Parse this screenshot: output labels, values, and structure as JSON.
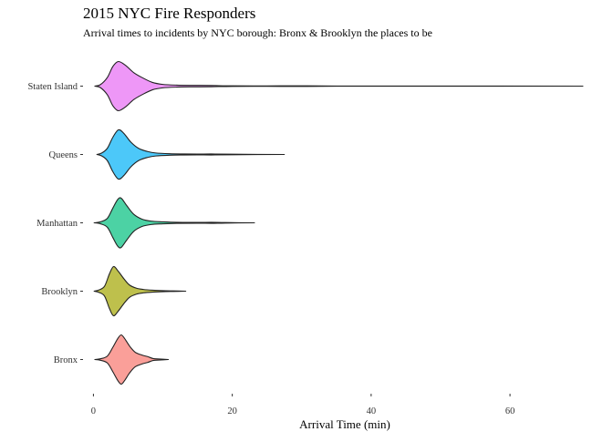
{
  "chart_data": {
    "type": "violin",
    "title": "2015 NYC Fire Responders",
    "subtitle": "Arrival times to incidents by NYC borough: Bronx & Brooklyn the places to be",
    "xlabel": "Arrival Time (min)",
    "ylabel": "",
    "xlim": [
      -1.5,
      70.5
    ],
    "x_ticks": [
      0,
      20,
      40,
      60
    ],
    "orientation": "horizontal",
    "grid": false,
    "legend": "none",
    "categories": [
      "Bronx",
      "Brooklyn",
      "Manhattan",
      "Queens",
      "Staten Island"
    ],
    "series": [
      {
        "category": "Bronx",
        "color": "#F8766D",
        "min": 0.2,
        "max": 10.8,
        "density": [
          [
            0.2,
            0.0
          ],
          [
            1.0,
            0.03
          ],
          [
            2.0,
            0.14
          ],
          [
            2.8,
            0.5
          ],
          [
            3.5,
            0.85
          ],
          [
            4.0,
            1.0
          ],
          [
            4.5,
            0.85
          ],
          [
            5.2,
            0.55
          ],
          [
            6.0,
            0.3
          ],
          [
            7.0,
            0.18
          ],
          [
            7.8,
            0.12
          ],
          [
            8.6,
            0.04
          ],
          [
            9.5,
            0.02
          ],
          [
            10.8,
            0.0
          ]
        ]
      },
      {
        "category": "Brooklyn",
        "color": "#A3A500",
        "min": 0.1,
        "max": 13.3,
        "density": [
          [
            0.1,
            0.0
          ],
          [
            0.8,
            0.05
          ],
          [
            1.6,
            0.2
          ],
          [
            2.3,
            0.7
          ],
          [
            2.9,
            1.0
          ],
          [
            3.6,
            0.8
          ],
          [
            4.4,
            0.5
          ],
          [
            5.2,
            0.25
          ],
          [
            6.2,
            0.12
          ],
          [
            7.2,
            0.07
          ],
          [
            8.5,
            0.04
          ],
          [
            10.0,
            0.02
          ],
          [
            11.5,
            0.01
          ],
          [
            13.3,
            0.0
          ]
        ]
      },
      {
        "category": "Manhattan",
        "color": "#00BF7D",
        "min": 0.1,
        "max": 23.2,
        "density": [
          [
            0.1,
            0.0
          ],
          [
            1.0,
            0.04
          ],
          [
            2.0,
            0.18
          ],
          [
            2.8,
            0.6
          ],
          [
            3.5,
            0.95
          ],
          [
            4.0,
            1.0
          ],
          [
            4.8,
            0.7
          ],
          [
            5.8,
            0.35
          ],
          [
            7.0,
            0.15
          ],
          [
            8.3,
            0.07
          ],
          [
            10.0,
            0.04
          ],
          [
            12.0,
            0.02
          ],
          [
            15.0,
            0.015
          ],
          [
            17.0,
            0.02
          ],
          [
            19.0,
            0.01
          ],
          [
            23.2,
            0.0
          ]
        ]
      },
      {
        "category": "Queens",
        "color": "#00B0F6",
        "min": 0.5,
        "max": 27.5,
        "density": [
          [
            0.5,
            0.0
          ],
          [
            1.2,
            0.06
          ],
          [
            2.0,
            0.25
          ],
          [
            2.8,
            0.7
          ],
          [
            3.6,
            1.0
          ],
          [
            4.4,
            0.85
          ],
          [
            5.4,
            0.5
          ],
          [
            6.5,
            0.25
          ],
          [
            7.8,
            0.12
          ],
          [
            9.0,
            0.06
          ],
          [
            11.0,
            0.03
          ],
          [
            13.0,
            0.02
          ],
          [
            15.0,
            0.015
          ],
          [
            17.0,
            0.02
          ],
          [
            20.0,
            0.01
          ],
          [
            27.5,
            0.0
          ]
        ]
      },
      {
        "category": "Staten Island",
        "color": "#E76BF3",
        "min": 0.2,
        "max": 70.5,
        "density": [
          [
            0.2,
            0.0
          ],
          [
            1.0,
            0.06
          ],
          [
            2.0,
            0.35
          ],
          [
            2.8,
            0.8
          ],
          [
            3.6,
            1.0
          ],
          [
            4.6,
            0.85
          ],
          [
            5.8,
            0.55
          ],
          [
            7.0,
            0.35
          ],
          [
            8.5,
            0.15
          ],
          [
            10.0,
            0.07
          ],
          [
            12.0,
            0.04
          ],
          [
            14.5,
            0.03
          ],
          [
            17.0,
            0.025
          ],
          [
            20.0,
            0.01
          ],
          [
            25.0,
            0.008
          ],
          [
            29.5,
            0.012
          ],
          [
            35.0,
            0.004
          ],
          [
            50.0,
            0.003
          ],
          [
            70.5,
            0.0
          ]
        ]
      }
    ]
  }
}
